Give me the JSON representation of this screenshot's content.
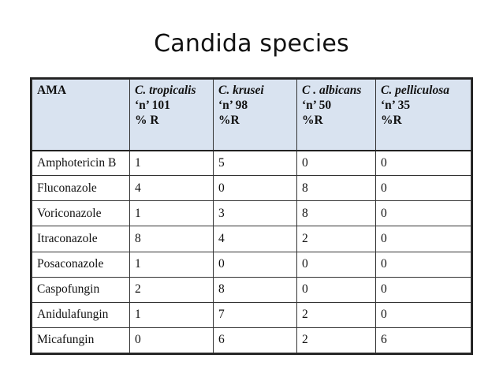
{
  "slide": {
    "title": "Candida species"
  },
  "table": {
    "first_header": "AMA",
    "species": [
      {
        "name": "C. tropicalis",
        "n": "‘n’ 101",
        "unit": "% R"
      },
      {
        "name": "C. krusei",
        "n": "‘n’ 98",
        "unit": "%R"
      },
      {
        "name": "C . albicans",
        "n": "‘n’ 50",
        "unit": "%R"
      },
      {
        "name": "C. pelliculosa",
        "n": "‘n’ 35",
        "unit": "%R"
      }
    ],
    "rows": [
      {
        "drug": "Amphotericin B",
        "values": [
          "1",
          "5",
          "0",
          "0"
        ]
      },
      {
        "drug": "Fluconazole",
        "values": [
          "4",
          "0",
          "8",
          "0"
        ]
      },
      {
        "drug": "Voriconazole",
        "values": [
          "1",
          "3",
          "8",
          "0"
        ]
      },
      {
        "drug": "Itraconazole",
        "values": [
          "8",
          "4",
          "2",
          "0"
        ]
      },
      {
        "drug": "Posaconazole",
        "values": [
          "1",
          "0",
          "0",
          "0"
        ]
      },
      {
        "drug": "Caspofungin",
        "values": [
          "2",
          "8",
          "0",
          "0"
        ]
      },
      {
        "drug": "Anidulafungin",
        "values": [
          "1",
          "7",
          "2",
          "0"
        ]
      },
      {
        "drug": "Micafungin",
        "values": [
          "0",
          "6",
          "2",
          "6"
        ]
      }
    ]
  },
  "colors": {
    "header_background": "#d9e3f0",
    "border": "#333333",
    "text": "#111111"
  }
}
